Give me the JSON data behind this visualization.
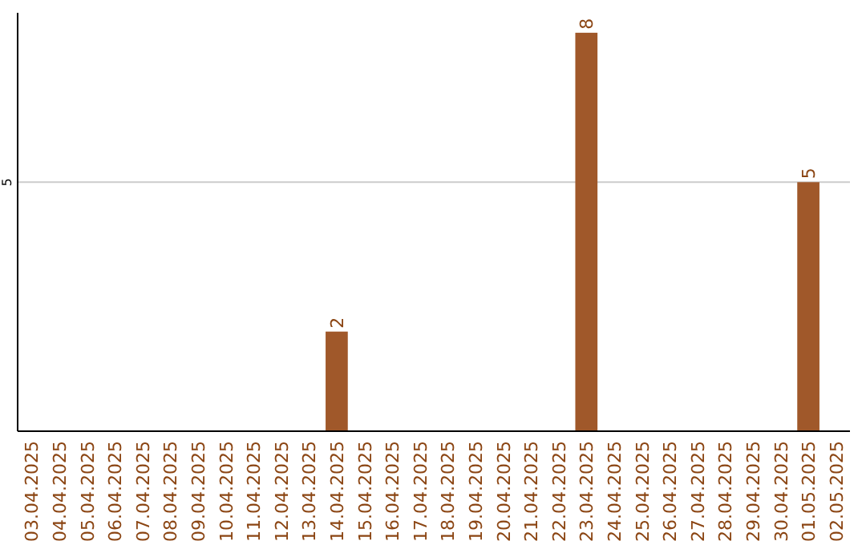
{
  "chart_data": {
    "type": "bar",
    "categories": [
      "03.04.2025",
      "04.04.2025",
      "05.04.2025",
      "06.04.2025",
      "07.04.2025",
      "08.04.2025",
      "09.04.2025",
      "10.04.2025",
      "11.04.2025",
      "12.04.2025",
      "13.04.2025",
      "14.04.2025",
      "15.04.2025",
      "16.04.2025",
      "17.04.2025",
      "18.04.2025",
      "19.04.2025",
      "20.04.2025",
      "21.04.2025",
      "22.04.2025",
      "23.04.2025",
      "24.04.2025",
      "25.04.2025",
      "26.04.2025",
      "27.04.2025",
      "28.04.2025",
      "29.04.2025",
      "30.04.2025",
      "01.05.2025",
      "02.05.2025"
    ],
    "values": [
      0,
      0,
      0,
      0,
      0,
      0,
      0,
      0,
      0,
      0,
      0,
      2,
      0,
      0,
      0,
      0,
      0,
      0,
      0,
      0,
      8,
      0,
      0,
      0,
      0,
      0,
      0,
      0,
      5,
      0
    ],
    "value_labels": [
      null,
      null,
      null,
      null,
      null,
      null,
      null,
      null,
      null,
      null,
      null,
      "2",
      null,
      null,
      null,
      null,
      null,
      null,
      null,
      null,
      "8",
      null,
      null,
      null,
      null,
      null,
      null,
      null,
      "5",
      null
    ],
    "color": "#a0582a",
    "ylim": [
      0,
      8.4
    ],
    "yticks": [
      5
    ],
    "grid": "y"
  }
}
